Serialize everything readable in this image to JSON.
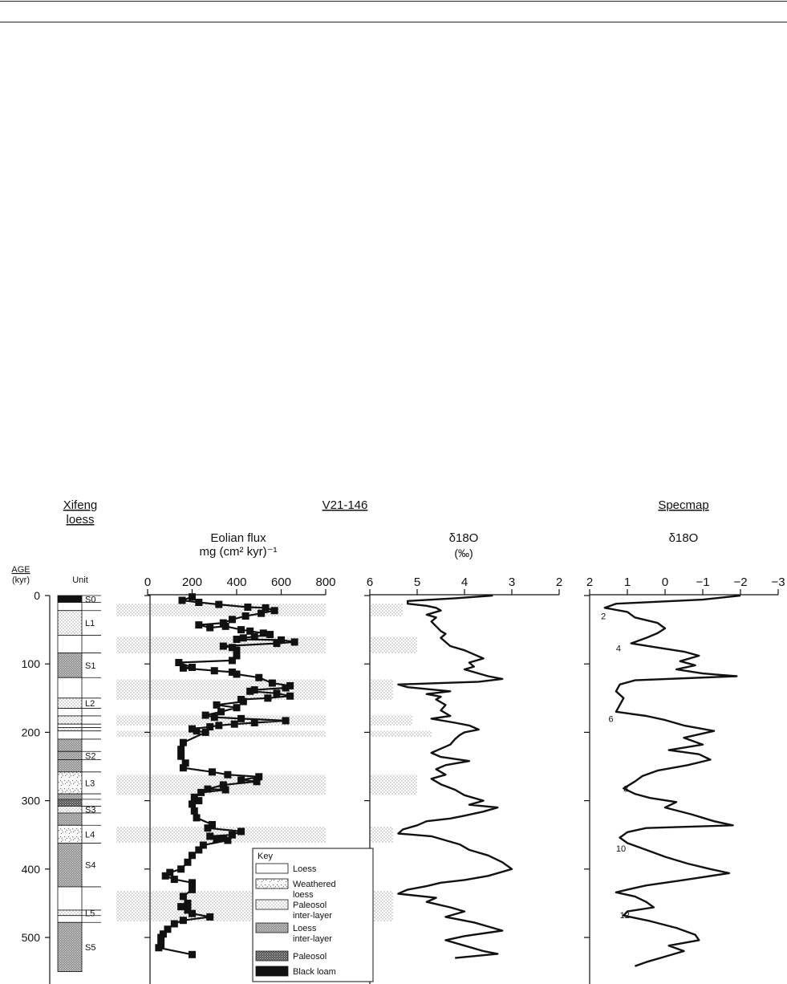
{
  "titles": {
    "xifeng": [
      "Xifeng",
      "loess"
    ],
    "v21": "V21-146",
    "specmap": "Specmap"
  },
  "age_axis": {
    "label": "AGE",
    "unit": "(kyr)",
    "ticks": [
      0,
      100,
      200,
      300,
      400,
      500
    ],
    "range": [
      0,
      550
    ]
  },
  "unit_header": "Unit",
  "stratigraphy": [
    {
      "label": "S0",
      "top": 0,
      "bottom": 10,
      "type": "black"
    },
    {
      "label": "",
      "top": 10,
      "bottom": 22,
      "type": "loess"
    },
    {
      "label": "L1",
      "top": 22,
      "bottom": 58,
      "type": "paleo_inter"
    },
    {
      "label": "",
      "top": 58,
      "bottom": 84,
      "type": "loess"
    },
    {
      "label": "S1",
      "top": 84,
      "bottom": 120,
      "type": "paleosol"
    },
    {
      "label": "",
      "top": 120,
      "bottom": 150,
      "type": "loess"
    },
    {
      "label": "L2",
      "top": 150,
      "bottom": 165,
      "type": "paleo_inter"
    },
    {
      "label": "",
      "top": 165,
      "bottom": 176,
      "type": "loess"
    },
    {
      "label": "",
      "top": 176,
      "bottom": 188,
      "type": "paleo_inter"
    },
    {
      "label": "",
      "top": 188,
      "bottom": 193,
      "type": "loess"
    },
    {
      "label": "",
      "top": 193,
      "bottom": 198,
      "type": "paleo_inter"
    },
    {
      "label": "",
      "top": 198,
      "bottom": 210,
      "type": "loess"
    },
    {
      "label": "",
      "top": 210,
      "bottom": 228,
      "type": "paleosol"
    },
    {
      "label": "S2",
      "top": 228,
      "bottom": 240,
      "type": "loess_inter"
    },
    {
      "label": "",
      "top": 240,
      "bottom": 258,
      "type": "paleosol"
    },
    {
      "label": "L3",
      "top": 258,
      "bottom": 290,
      "type": "weathered"
    },
    {
      "label": "",
      "top": 290,
      "bottom": 298,
      "type": "paleosol"
    },
    {
      "label": "",
      "top": 298,
      "bottom": 308,
      "type": "paleosol_dense"
    },
    {
      "label": "S3",
      "top": 308,
      "bottom": 318,
      "type": "paleo_inter"
    },
    {
      "label": "",
      "top": 318,
      "bottom": 336,
      "type": "paleosol"
    },
    {
      "label": "L4",
      "top": 336,
      "bottom": 362,
      "type": "weathered"
    },
    {
      "label": "S4",
      "top": 362,
      "bottom": 426,
      "type": "paleosol"
    },
    {
      "label": "",
      "top": 426,
      "bottom": 460,
      "type": "loess"
    },
    {
      "label": "L5",
      "top": 460,
      "bottom": 468,
      "type": "paleo_inter"
    },
    {
      "label": "",
      "top": 468,
      "bottom": 478,
      "type": "loess"
    },
    {
      "label": "S5",
      "top": 478,
      "bottom": 550,
      "type": "paleosol"
    }
  ],
  "shaded_bands": [
    {
      "top": 12,
      "bottom": 30,
      "flux_extent": 800,
      "d18o_extent": 5.3
    },
    {
      "top": 60,
      "bottom": 84,
      "flux_extent": 800,
      "d18o_extent": 5.0
    },
    {
      "top": 123,
      "bottom": 152,
      "flux_extent": 800,
      "d18o_extent": 5.5
    },
    {
      "top": 175,
      "bottom": 190,
      "flux_extent": 800,
      "d18o_extent": 5.1
    },
    {
      "top": 198,
      "bottom": 206,
      "flux_extent": 800,
      "d18o_extent": 4.7
    },
    {
      "top": 262,
      "bottom": 292,
      "flux_extent": 800,
      "d18o_extent": 5.0
    },
    {
      "top": 338,
      "bottom": 362,
      "flux_extent": 800,
      "d18o_extent": 5.5
    },
    {
      "top": 432,
      "bottom": 476,
      "flux_extent": 800,
      "d18o_extent": 5.5
    }
  ],
  "legend": {
    "title": "Key",
    "items": [
      {
        "label": "Loess",
        "type": "loess"
      },
      {
        "label": "Weathered\nloess",
        "type": "weathered"
      },
      {
        "label": "Paleosol\ninter-layer",
        "type": "paleo_inter"
      },
      {
        "label": "Loess\ninter-layer",
        "type": "loess_inter"
      },
      {
        "label": "Paleosol",
        "type": "paleosol_dense"
      },
      {
        "label": "Black loam",
        "type": "black"
      }
    ]
  },
  "chart_data": [
    {
      "type": "line",
      "title": "Eolian flux",
      "xlabel": "mg (cm² kyr)⁻¹",
      "xlim": [
        0,
        800
      ],
      "xticks": [
        0,
        200,
        400,
        600,
        800
      ],
      "ylim": [
        0,
        550
      ],
      "markers": true,
      "points": [
        [
          200,
          2
        ],
        [
          155,
          7
        ],
        [
          230,
          10
        ],
        [
          320,
          13
        ],
        [
          450,
          17
        ],
        [
          530,
          18
        ],
        [
          570,
          22
        ],
        [
          510,
          26
        ],
        [
          440,
          30
        ],
        [
          380,
          35
        ],
        [
          340,
          40
        ],
        [
          230,
          43
        ],
        [
          280,
          47
        ],
        [
          350,
          45
        ],
        [
          420,
          50
        ],
        [
          460,
          52
        ],
        [
          520,
          55
        ],
        [
          550,
          57
        ],
        [
          480,
          60
        ],
        [
          430,
          62
        ],
        [
          400,
          64
        ],
        [
          600,
          65
        ],
        [
          660,
          68
        ],
        [
          580,
          70
        ],
        [
          340,
          74
        ],
        [
          380,
          76
        ],
        [
          400,
          80
        ],
        [
          400,
          88
        ],
        [
          380,
          95
        ],
        [
          140,
          98
        ],
        [
          200,
          105
        ],
        [
          160,
          106
        ],
        [
          300,
          110
        ],
        [
          380,
          112
        ],
        [
          400,
          115
        ],
        [
          500,
          120
        ],
        [
          560,
          128
        ],
        [
          640,
          132
        ],
        [
          620,
          135
        ],
        [
          480,
          138
        ],
        [
          460,
          140
        ],
        [
          580,
          143
        ],
        [
          640,
          147
        ],
        [
          540,
          150
        ],
        [
          420,
          152
        ],
        [
          430,
          155
        ],
        [
          310,
          160
        ],
        [
          400,
          164
        ],
        [
          330,
          170
        ],
        [
          260,
          175
        ],
        [
          300,
          178
        ],
        [
          420,
          180
        ],
        [
          620,
          183
        ],
        [
          480,
          186
        ],
        [
          390,
          188
        ],
        [
          320,
          190
        ],
        [
          280,
          192
        ],
        [
          200,
          195
        ],
        [
          220,
          198
        ],
        [
          260,
          200
        ],
        [
          160,
          215
        ],
        [
          150,
          225
        ],
        [
          150,
          235
        ],
        [
          170,
          245
        ],
        [
          160,
          252
        ],
        [
          290,
          258
        ],
        [
          360,
          262
        ],
        [
          500,
          265
        ],
        [
          420,
          270
        ],
        [
          490,
          272
        ],
        [
          340,
          277
        ],
        [
          270,
          283
        ],
        [
          350,
          284
        ],
        [
          240,
          288
        ],
        [
          210,
          295
        ],
        [
          230,
          300
        ],
        [
          200,
          305
        ],
        [
          210,
          315
        ],
        [
          220,
          325
        ],
        [
          290,
          335
        ],
        [
          270,
          340
        ],
        [
          420,
          345
        ],
        [
          380,
          350
        ],
        [
          280,
          352
        ],
        [
          310,
          356
        ],
        [
          340,
          355
        ],
        [
          360,
          358
        ],
        [
          250,
          365
        ],
        [
          230,
          372
        ],
        [
          200,
          380
        ],
        [
          180,
          390
        ],
        [
          150,
          400
        ],
        [
          100,
          405
        ],
        [
          80,
          410
        ],
        [
          120,
          415
        ],
        [
          200,
          420
        ],
        [
          200,
          430
        ],
        [
          160,
          440
        ],
        [
          180,
          450
        ],
        [
          150,
          455
        ],
        [
          180,
          460
        ],
        [
          200,
          465
        ],
        [
          280,
          470
        ],
        [
          160,
          475
        ],
        [
          120,
          480
        ],
        [
          90,
          488
        ],
        [
          70,
          495
        ],
        [
          60,
          500
        ],
        [
          60,
          510
        ],
        [
          50,
          515
        ],
        [
          200,
          525
        ]
      ]
    },
    {
      "type": "line",
      "title": "δ18O",
      "xlabel": "(‰)",
      "xlim": [
        6,
        2
      ],
      "xticks": [
        6,
        5,
        4,
        3,
        2
      ],
      "ylim": [
        0,
        550
      ],
      "markers": false,
      "points": [
        [
          3.4,
          0
        ],
        [
          4.2,
          4
        ],
        [
          5.2,
          8
        ],
        [
          5.2,
          12
        ],
        [
          4.8,
          15
        ],
        [
          4.6,
          18
        ],
        [
          4.5,
          22
        ],
        [
          4.8,
          28
        ],
        [
          4.6,
          32
        ],
        [
          4.7,
          38
        ],
        [
          4.6,
          45
        ],
        [
          4.5,
          52
        ],
        [
          4.4,
          56
        ],
        [
          4.5,
          62
        ],
        [
          4.4,
          68
        ],
        [
          4.3,
          74
        ],
        [
          4.0,
          80
        ],
        [
          3.8,
          86
        ],
        [
          3.6,
          92
        ],
        [
          3.9,
          98
        ],
        [
          3.8,
          104
        ],
        [
          4.0,
          108
        ],
        [
          3.7,
          114
        ],
        [
          3.5,
          118
        ],
        [
          3.2,
          122
        ],
        [
          3.7,
          126
        ],
        [
          5.4,
          130
        ],
        [
          5.2,
          134
        ],
        [
          4.3,
          140
        ],
        [
          4.8,
          144
        ],
        [
          4.5,
          148
        ],
        [
          4.6,
          152
        ],
        [
          4.4,
          160
        ],
        [
          4.5,
          168
        ],
        [
          4.3,
          176
        ],
        [
          4.7,
          180
        ],
        [
          4.2,
          186
        ],
        [
          3.9,
          190
        ],
        [
          3.7,
          196
        ],
        [
          4.0,
          200
        ],
        [
          4.1,
          204
        ],
        [
          4.2,
          210
        ],
        [
          4.3,
          218
        ],
        [
          4.5,
          224
        ],
        [
          4.7,
          230
        ],
        [
          4.5,
          236
        ],
        [
          3.9,
          242
        ],
        [
          4.4,
          248
        ],
        [
          4.6,
          254
        ],
        [
          4.4,
          262
        ],
        [
          4.7,
          268
        ],
        [
          4.5,
          276
        ],
        [
          4.2,
          284
        ],
        [
          4.0,
          292
        ],
        [
          3.6,
          300
        ],
        [
          3.9,
          306
        ],
        [
          3.3,
          310
        ],
        [
          3.6,
          316
        ],
        [
          4.0,
          322
        ],
        [
          4.3,
          326
        ],
        [
          4.8,
          330
        ],
        [
          5.0,
          336
        ],
        [
          5.3,
          342
        ],
        [
          5.4,
          348
        ],
        [
          4.7,
          352
        ],
        [
          4.4,
          358
        ],
        [
          4.1,
          364
        ],
        [
          3.9,
          372
        ],
        [
          3.5,
          380
        ],
        [
          3.2,
          390
        ],
        [
          3.0,
          400
        ],
        [
          3.5,
          410
        ],
        [
          4.0,
          416
        ],
        [
          4.5,
          420
        ],
        [
          4.8,
          425
        ],
        [
          5.2,
          430
        ],
        [
          5.4,
          436
        ],
        [
          4.6,
          442
        ],
        [
          4.8,
          448
        ],
        [
          4.3,
          456
        ],
        [
          4.0,
          462
        ],
        [
          4.4,
          470
        ],
        [
          3.8,
          478
        ],
        [
          3.5,
          484
        ],
        [
          3.2,
          490
        ],
        [
          4.0,
          498
        ],
        [
          4.4,
          504
        ],
        [
          4.0,
          512
        ],
        [
          3.6,
          520
        ],
        [
          3.3,
          524
        ],
        [
          4.2,
          530
        ]
      ]
    },
    {
      "type": "line",
      "title": "δ18O",
      "xlabel": "",
      "xlim": [
        2,
        -3
      ],
      "xticks": [
        2,
        1,
        0,
        -1,
        -2,
        -3
      ],
      "xtick_labels": [
        "2",
        "1",
        "0",
        "−1",
        "−2",
        "−3"
      ],
      "ylim": [
        0,
        550
      ],
      "markers": false,
      "annotations": [
        {
          "text": "2",
          "x": 1.7,
          "y": 30
        },
        {
          "text": "4",
          "x": 1.3,
          "y": 77
        },
        {
          "text": "6",
          "x": 1.5,
          "y": 180
        },
        {
          "text": "8",
          "x": 1.1,
          "y": 282
        },
        {
          "text": "10",
          "x": 1.3,
          "y": 370
        },
        {
          "text": "12",
          "x": 1.2,
          "y": 467
        }
      ],
      "points": [
        [
          -2.0,
          0
        ],
        [
          -1.0,
          6
        ],
        [
          1.3,
          12
        ],
        [
          1.6,
          18
        ],
        [
          1.0,
          24
        ],
        [
          0.8,
          32
        ],
        [
          0.2,
          40
        ],
        [
          0.0,
          48
        ],
        [
          0.2,
          55
        ],
        [
          0.5,
          62
        ],
        [
          0.9,
          70
        ],
        [
          0.2,
          76
        ],
        [
          -0.5,
          82
        ],
        [
          -0.9,
          88
        ],
        [
          -0.4,
          96
        ],
        [
          -0.8,
          102
        ],
        [
          -0.3,
          108
        ],
        [
          -1.0,
          114
        ],
        [
          -1.9,
          118
        ],
        [
          0.8,
          124
        ],
        [
          1.2,
          130
        ],
        [
          1.3,
          140
        ],
        [
          1.1,
          150
        ],
        [
          1.2,
          160
        ],
        [
          1.3,
          170
        ],
        [
          0.5,
          176
        ],
        [
          0.0,
          182
        ],
        [
          -0.5,
          190
        ],
        [
          -1.3,
          198
        ],
        [
          -0.5,
          208
        ],
        [
          -1.0,
          218
        ],
        [
          -0.1,
          226
        ],
        [
          -0.9,
          232
        ],
        [
          -1.2,
          240
        ],
        [
          -0.6,
          248
        ],
        [
          0.2,
          256
        ],
        [
          0.6,
          264
        ],
        [
          0.8,
          272
        ],
        [
          1.1,
          282
        ],
        [
          0.8,
          290
        ],
        [
          0.4,
          296
        ],
        [
          -0.3,
          302
        ],
        [
          0.0,
          310
        ],
        [
          -0.7,
          320
        ],
        [
          -1.3,
          330
        ],
        [
          -1.8,
          336
        ],
        [
          0.5,
          340
        ],
        [
          1.0,
          346
        ],
        [
          1.2,
          354
        ],
        [
          1.0,
          362
        ],
        [
          0.5,
          372
        ],
        [
          0.0,
          382
        ],
        [
          -0.6,
          392
        ],
        [
          -1.2,
          400
        ],
        [
          -1.7,
          406
        ],
        [
          -0.5,
          416
        ],
        [
          0.5,
          424
        ],
        [
          1.0,
          430
        ],
        [
          1.3,
          434
        ],
        [
          0.8,
          440
        ],
        [
          0.5,
          448
        ],
        [
          0.3,
          456
        ],
        [
          1.0,
          462
        ],
        [
          1.1,
          468
        ],
        [
          0.4,
          476
        ],
        [
          -0.3,
          486
        ],
        [
          -0.8,
          496
        ],
        [
          -0.9,
          504
        ],
        [
          -0.1,
          512
        ],
        [
          -0.5,
          520
        ],
        [
          0.0,
          528
        ],
        [
          0.5,
          536
        ],
        [
          0.8,
          542
        ]
      ]
    }
  ]
}
